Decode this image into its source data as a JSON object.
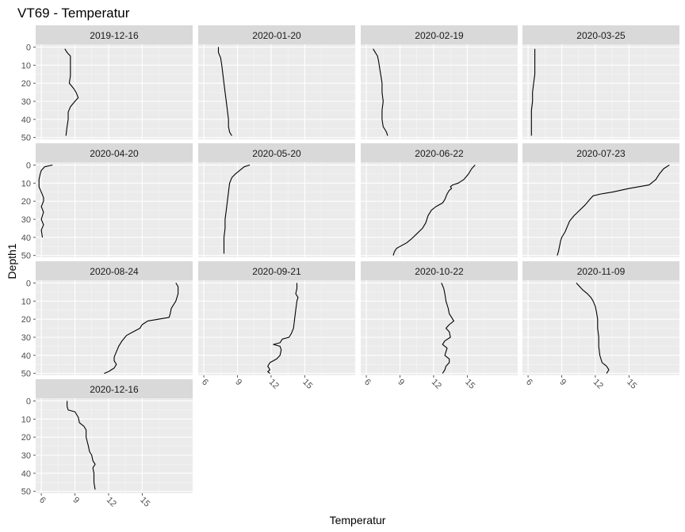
{
  "chart_data": {
    "type": "line",
    "title": "VT69  -  Temperatur",
    "xlabel": "Temperatur",
    "ylabel": "Depth1",
    "xlim": [
      5.5,
      19.5
    ],
    "ylim": [
      51,
      -1.5
    ],
    "x_ticks": [
      6,
      9,
      12,
      15
    ],
    "y_ticks": [
      0,
      10,
      20,
      30,
      40,
      50
    ],
    "grid": true,
    "facets": [
      {
        "label": "2019-12-16",
        "points": [
          [
            8.1,
            1
          ],
          [
            8.3,
            3
          ],
          [
            8.6,
            5
          ],
          [
            8.6,
            8
          ],
          [
            8.6,
            12
          ],
          [
            8.6,
            16
          ],
          [
            8.5,
            20
          ],
          [
            8.9,
            23
          ],
          [
            9.1,
            25
          ],
          [
            9.3,
            28
          ],
          [
            9.0,
            30
          ],
          [
            8.6,
            33
          ],
          [
            8.4,
            36
          ],
          [
            8.4,
            40
          ],
          [
            8.3,
            44
          ],
          [
            8.2,
            49
          ]
        ]
      },
      {
        "label": "2020-01-20",
        "points": [
          [
            7.3,
            0
          ],
          [
            7.3,
            3
          ],
          [
            7.5,
            6
          ],
          [
            7.6,
            10
          ],
          [
            7.7,
            15
          ],
          [
            7.8,
            20
          ],
          [
            7.9,
            25
          ],
          [
            8.0,
            30
          ],
          [
            8.1,
            35
          ],
          [
            8.2,
            40
          ],
          [
            8.2,
            44
          ],
          [
            8.3,
            47
          ],
          [
            8.5,
            49
          ]
        ]
      },
      {
        "label": "2020-02-19",
        "points": [
          [
            6.6,
            1
          ],
          [
            6.8,
            3
          ],
          [
            7.0,
            5
          ],
          [
            7.1,
            8
          ],
          [
            7.2,
            12
          ],
          [
            7.3,
            16
          ],
          [
            7.4,
            20
          ],
          [
            7.4,
            25
          ],
          [
            7.5,
            30
          ],
          [
            7.4,
            35
          ],
          [
            7.4,
            40
          ],
          [
            7.5,
            44
          ],
          [
            7.8,
            47
          ],
          [
            7.9,
            49
          ]
        ]
      },
      {
        "label": "2020-03-25",
        "points": [
          [
            6.6,
            1
          ],
          [
            6.6,
            5
          ],
          [
            6.6,
            10
          ],
          [
            6.6,
            15
          ],
          [
            6.5,
            20
          ],
          [
            6.4,
            25
          ],
          [
            6.4,
            30
          ],
          [
            6.3,
            35
          ],
          [
            6.3,
            40
          ],
          [
            6.3,
            45
          ],
          [
            6.3,
            49
          ]
        ]
      },
      {
        "label": "2020-04-20",
        "points": [
          [
            7.0,
            0
          ],
          [
            6.3,
            1
          ],
          [
            6.0,
            3
          ],
          [
            5.9,
            5
          ],
          [
            5.8,
            8
          ],
          [
            5.8,
            12
          ],
          [
            6.0,
            15
          ],
          [
            6.2,
            18
          ],
          [
            6.2,
            20
          ],
          [
            6.0,
            23
          ],
          [
            6.2,
            26
          ],
          [
            6.0,
            30
          ],
          [
            6.2,
            33
          ],
          [
            6.0,
            36
          ],
          [
            6.1,
            40
          ]
        ]
      },
      {
        "label": "2020-05-20",
        "points": [
          [
            10.1,
            0
          ],
          [
            9.6,
            1
          ],
          [
            9.2,
            3
          ],
          [
            8.8,
            5
          ],
          [
            8.5,
            7
          ],
          [
            8.3,
            10
          ],
          [
            8.2,
            15
          ],
          [
            8.1,
            20
          ],
          [
            8.0,
            25
          ],
          [
            7.9,
            30
          ],
          [
            7.9,
            35
          ],
          [
            7.8,
            40
          ],
          [
            7.8,
            45
          ],
          [
            7.8,
            49
          ]
        ]
      },
      {
        "label": "2020-06-22",
        "points": [
          [
            15.7,
            0
          ],
          [
            15.4,
            2
          ],
          [
            15.1,
            5
          ],
          [
            14.7,
            8
          ],
          [
            14.2,
            10
          ],
          [
            13.7,
            11
          ],
          [
            13.5,
            12
          ],
          [
            13.6,
            13
          ],
          [
            13.4,
            14
          ],
          [
            13.2,
            16
          ],
          [
            13.0,
            19
          ],
          [
            12.8,
            21
          ],
          [
            12.2,
            23
          ],
          [
            11.8,
            25
          ],
          [
            11.5,
            28
          ],
          [
            11.3,
            32
          ],
          [
            11.0,
            35
          ],
          [
            10.5,
            38
          ],
          [
            10.0,
            41
          ],
          [
            9.6,
            43
          ],
          [
            9.0,
            45
          ],
          [
            8.7,
            46
          ],
          [
            8.5,
            48
          ],
          [
            8.4,
            50
          ]
        ]
      },
      {
        "label": "2020-07-23",
        "points": [
          [
            18.6,
            0
          ],
          [
            18.1,
            2
          ],
          [
            17.7,
            5
          ],
          [
            17.4,
            8
          ],
          [
            16.8,
            11
          ],
          [
            15.0,
            13
          ],
          [
            13.5,
            15
          ],
          [
            12.5,
            16
          ],
          [
            11.8,
            17
          ],
          [
            11.5,
            19
          ],
          [
            11.1,
            22
          ],
          [
            10.6,
            25
          ],
          [
            10.1,
            28
          ],
          [
            9.7,
            31
          ],
          [
            9.5,
            34
          ],
          [
            9.3,
            37
          ],
          [
            9.0,
            40
          ],
          [
            8.9,
            42
          ],
          [
            8.8,
            45
          ],
          [
            8.7,
            48
          ],
          [
            8.6,
            50
          ]
        ]
      },
      {
        "label": "2020-08-24",
        "points": [
          [
            18.0,
            0
          ],
          [
            18.2,
            2
          ],
          [
            18.2,
            6
          ],
          [
            18.0,
            10
          ],
          [
            17.6,
            14
          ],
          [
            17.5,
            17
          ],
          [
            17.4,
            19
          ],
          [
            16.5,
            20
          ],
          [
            15.5,
            21
          ],
          [
            15.0,
            23
          ],
          [
            14.8,
            25
          ],
          [
            14.2,
            27
          ],
          [
            13.6,
            29
          ],
          [
            13.2,
            32
          ],
          [
            12.9,
            35
          ],
          [
            12.7,
            38
          ],
          [
            12.5,
            41
          ],
          [
            12.5,
            43
          ],
          [
            12.7,
            45
          ],
          [
            12.5,
            47
          ],
          [
            12.0,
            49
          ],
          [
            11.6,
            50
          ]
        ]
      },
      {
        "label": "2020-09-21",
        "points": [
          [
            14.3,
            0
          ],
          [
            14.3,
            3
          ],
          [
            14.2,
            6
          ],
          [
            14.4,
            8
          ],
          [
            14.3,
            10
          ],
          [
            14.2,
            15
          ],
          [
            14.1,
            20
          ],
          [
            14.0,
            25
          ],
          [
            13.8,
            28
          ],
          [
            13.6,
            30
          ],
          [
            13.0,
            31
          ],
          [
            12.8,
            33
          ],
          [
            12.2,
            34
          ],
          [
            12.8,
            35
          ],
          [
            12.9,
            37
          ],
          [
            12.8,
            40
          ],
          [
            12.5,
            42
          ],
          [
            11.9,
            44
          ],
          [
            11.7,
            46
          ],
          [
            11.9,
            48
          ],
          [
            11.7,
            49
          ],
          [
            11.9,
            50
          ]
        ]
      },
      {
        "label": "2020-10-22",
        "points": [
          [
            12.7,
            0
          ],
          [
            12.9,
            3
          ],
          [
            13.0,
            6
          ],
          [
            13.1,
            10
          ],
          [
            13.3,
            14
          ],
          [
            13.4,
            17
          ],
          [
            13.6,
            19
          ],
          [
            13.8,
            21
          ],
          [
            13.4,
            23
          ],
          [
            13.1,
            25
          ],
          [
            13.4,
            27
          ],
          [
            13.5,
            30
          ],
          [
            13.0,
            32
          ],
          [
            12.8,
            34
          ],
          [
            13.2,
            36
          ],
          [
            13.1,
            38
          ],
          [
            13.0,
            40
          ],
          [
            13.4,
            42
          ],
          [
            13.4,
            44
          ],
          [
            13.1,
            46
          ],
          [
            13.0,
            48
          ],
          [
            12.8,
            50
          ]
        ]
      },
      {
        "label": "2020-11-09",
        "points": [
          [
            10.3,
            0
          ],
          [
            10.6,
            2
          ],
          [
            10.9,
            4
          ],
          [
            11.3,
            6
          ],
          [
            11.6,
            8
          ],
          [
            11.8,
            10
          ],
          [
            12.0,
            13
          ],
          [
            12.1,
            16
          ],
          [
            12.2,
            20
          ],
          [
            12.2,
            25
          ],
          [
            12.3,
            30
          ],
          [
            12.3,
            35
          ],
          [
            12.4,
            40
          ],
          [
            12.6,
            44
          ],
          [
            13.0,
            46
          ],
          [
            13.2,
            48
          ],
          [
            13.0,
            50
          ]
        ]
      },
      {
        "label": "2020-12-16",
        "points": [
          [
            8.3,
            0
          ],
          [
            8.3,
            3
          ],
          [
            8.4,
            5
          ],
          [
            9.0,
            6
          ],
          [
            9.3,
            9
          ],
          [
            9.4,
            12
          ],
          [
            9.8,
            14
          ],
          [
            10.0,
            16
          ],
          [
            10.0,
            20
          ],
          [
            10.2,
            25
          ],
          [
            10.3,
            28
          ],
          [
            10.5,
            30
          ],
          [
            10.6,
            33
          ],
          [
            10.8,
            35
          ],
          [
            10.6,
            37
          ],
          [
            10.7,
            40
          ],
          [
            10.7,
            45
          ],
          [
            10.8,
            49
          ]
        ]
      }
    ]
  }
}
